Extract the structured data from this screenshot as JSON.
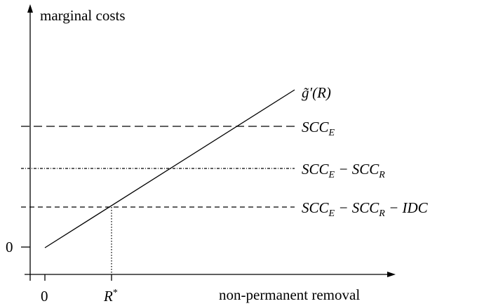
{
  "axes": {
    "y_label": "marginal costs",
    "x_label": "non-permanent removal",
    "y_origin": "0",
    "x_origin": "0",
    "x_marker": {
      "base": "R",
      "sup": "*"
    }
  },
  "curve": {
    "label": [
      {
        "text": "g̃′(R)"
      }
    ]
  },
  "levels": [
    {
      "label": [
        {
          "text": "SCC"
        },
        {
          "text": "E",
          "sub": true
        }
      ]
    },
    {
      "label": [
        {
          "text": "SCC"
        },
        {
          "text": "E",
          "sub": true
        },
        {
          "text": " − SCC"
        },
        {
          "text": "R",
          "sub": true
        }
      ]
    },
    {
      "label": [
        {
          "text": "SCC"
        },
        {
          "text": "E",
          "sub": true
        },
        {
          "text": " − SCC"
        },
        {
          "text": "R",
          "sub": true
        },
        {
          "text": " − IDC"
        }
      ]
    }
  ]
}
